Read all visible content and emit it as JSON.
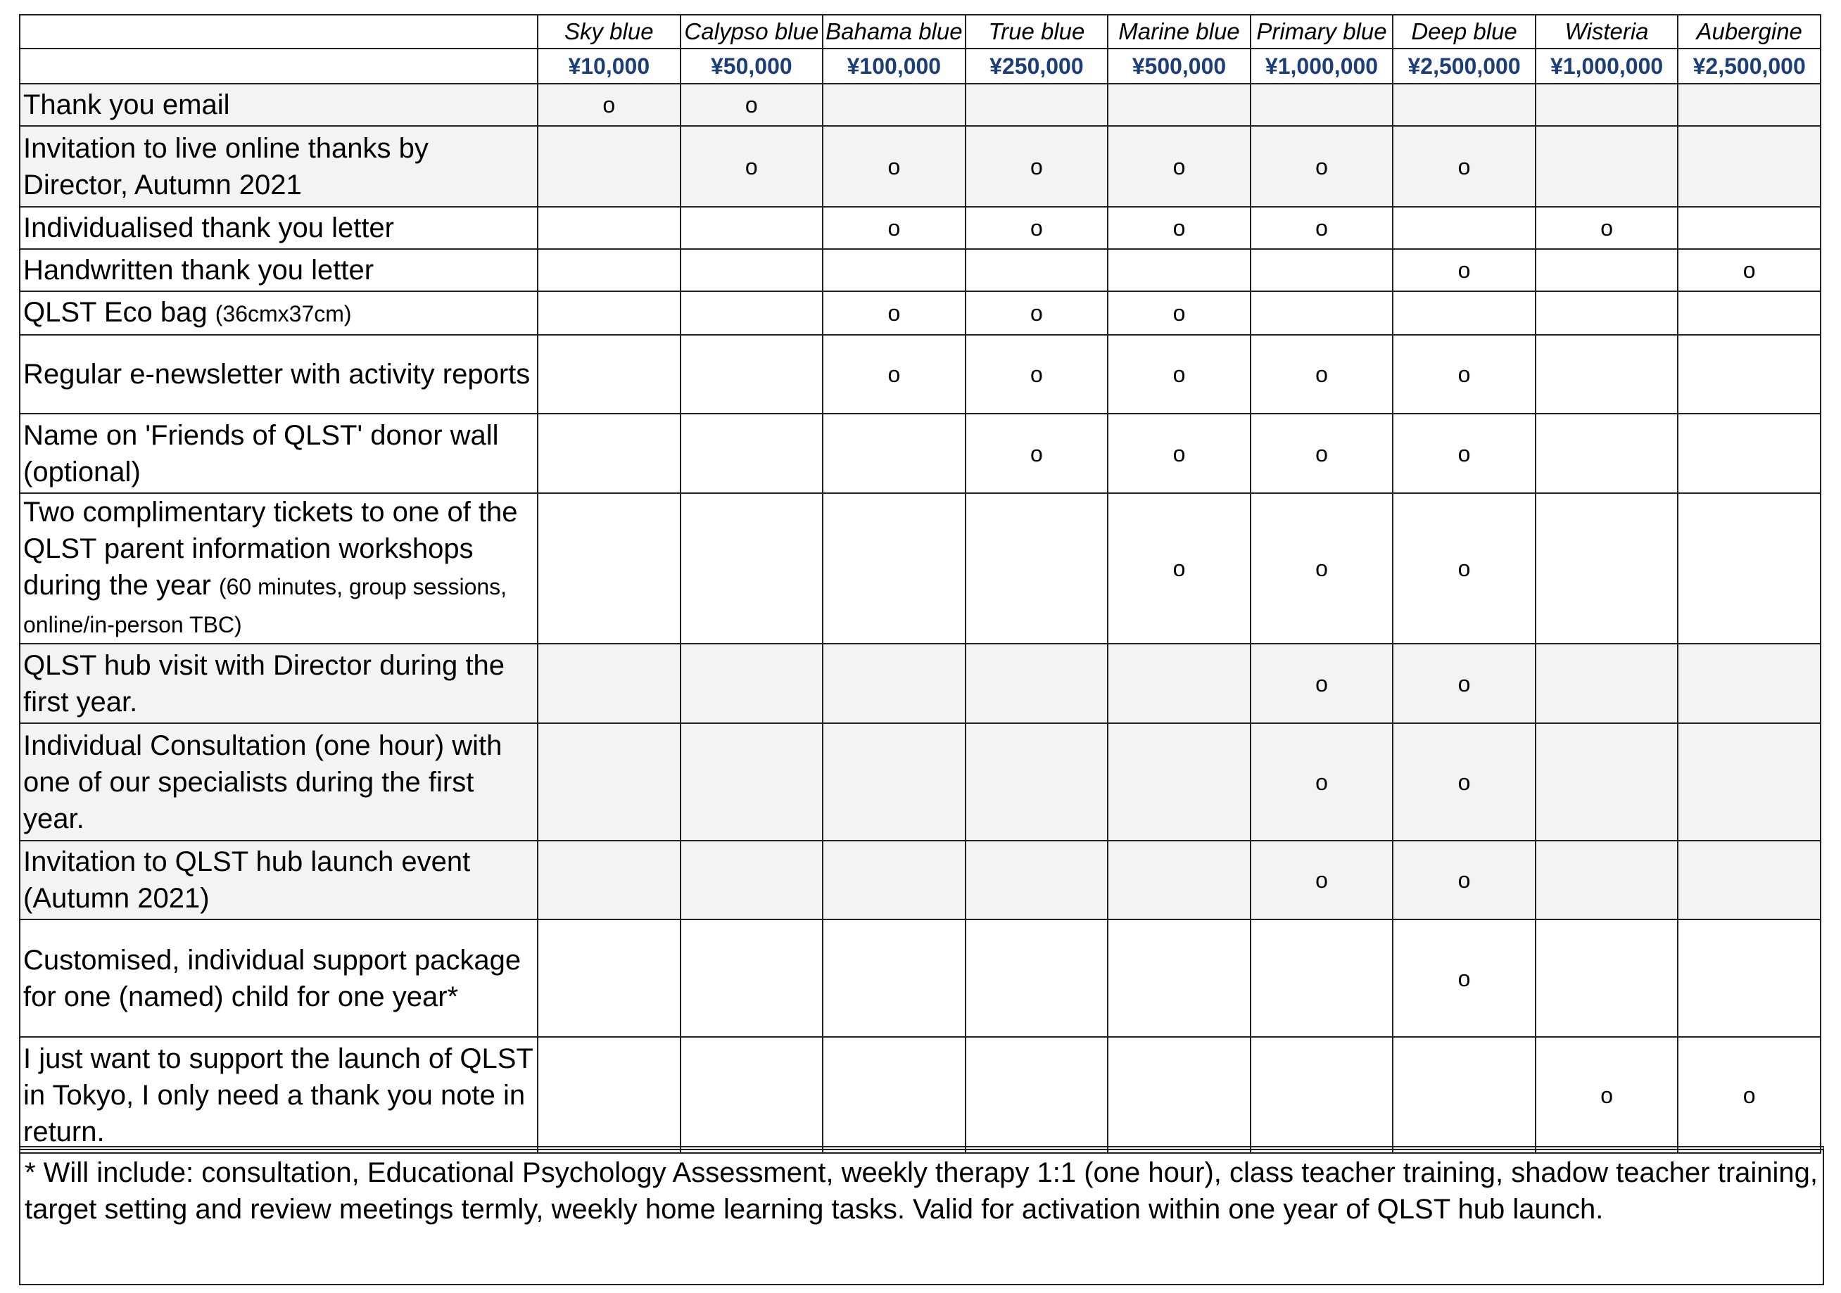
{
  "header": {
    "tiers": [
      {
        "name": "Sky blue",
        "price": "¥10,000"
      },
      {
        "name": "Calypso blue",
        "price": "¥50,000"
      },
      {
        "name": "Bahama blue",
        "price": "¥100,000"
      },
      {
        "name": "True blue",
        "price": "¥250,000"
      },
      {
        "name": "Marine blue",
        "price": "¥500,000"
      },
      {
        "name": "Primary blue",
        "price": "¥1,000,000"
      },
      {
        "name": "Deep blue",
        "price": "¥2,500,000"
      },
      {
        "name": "Wisteria",
        "price": "¥1,000,000"
      },
      {
        "name": "Aubergine",
        "price": "¥2,500,000"
      }
    ]
  },
  "table": {
    "rows": [
      {
        "label": "Thank you email",
        "shaded": true,
        "cells": [
          "o",
          "o",
          null,
          null,
          null,
          null,
          null,
          null,
          null
        ]
      },
      {
        "label": "Invitation to live online thanks by Director, Autumn 2021",
        "shaded": true,
        "cells": [
          null,
          "o",
          "o",
          "o",
          "o",
          "o",
          "o",
          null,
          null
        ]
      },
      {
        "label": "Individualised thank you letter",
        "shaded": false,
        "cells": [
          null,
          null,
          "o",
          "o",
          "o",
          "o",
          null,
          "o",
          null
        ]
      },
      {
        "label": "Handwritten thank you letter",
        "shaded": false,
        "cells": [
          null,
          null,
          null,
          null,
          null,
          null,
          "o",
          null,
          "o"
        ]
      },
      {
        "label": "QLST Eco bag",
        "note": "(36cmx37cm)",
        "shaded": false,
        "cells": [
          null,
          null,
          "o",
          "o",
          "o",
          null,
          null,
          null,
          null
        ]
      },
      {
        "label": "Regular e-newsletter with activity reports",
        "shaded": false,
        "cells": [
          null,
          null,
          "o",
          "o",
          "o",
          "o",
          "o",
          null,
          null
        ]
      },
      {
        "label": "Name on 'Friends of QLST' donor wall (optional)",
        "shaded": false,
        "cells": [
          null,
          null,
          null,
          "o",
          "o",
          "o",
          "o",
          null,
          null
        ]
      },
      {
        "label": "Two complimentary tickets to one of the QLST parent information workshops during the year",
        "note": "(60 minutes, group sessions, online/in-person TBC)",
        "shaded": false,
        "cells": [
          null,
          null,
          null,
          null,
          "o",
          "o",
          "o",
          null,
          null
        ]
      },
      {
        "label": "QLST hub visit with Director during the first year.",
        "shaded": true,
        "cells": [
          null,
          null,
          null,
          null,
          null,
          "o",
          "o",
          null,
          null
        ]
      },
      {
        "label": "Individual Consultation (one hour) with one of our specialists during the first year.",
        "shaded": true,
        "cells": [
          null,
          null,
          null,
          null,
          null,
          "o",
          "o",
          null,
          null
        ]
      },
      {
        "label": "Invitation to QLST hub launch event (Autumn 2021)",
        "shaded": true,
        "cells": [
          null,
          null,
          null,
          null,
          null,
          "o",
          "o",
          null,
          null
        ]
      },
      {
        "label": "Customised, individual support package for one (named) child for one year*",
        "shaded": false,
        "cells": [
          null,
          null,
          null,
          null,
          null,
          null,
          "o",
          null,
          null
        ]
      },
      {
        "label": "I just want to support the launch of QLST in Tokyo, I only need a thank you note in return.",
        "shaded": false,
        "cells": [
          null,
          null,
          null,
          null,
          null,
          null,
          null,
          "o",
          "o"
        ]
      }
    ]
  },
  "footnote": "* Will include: consultation, Educational Psychology Assessment, weekly therapy 1:1 (one hour), class teacher training, shadow teacher training, target setting and review meetings termly, weekly home learning tasks. Valid for activation within one year of QLST hub launch."
}
